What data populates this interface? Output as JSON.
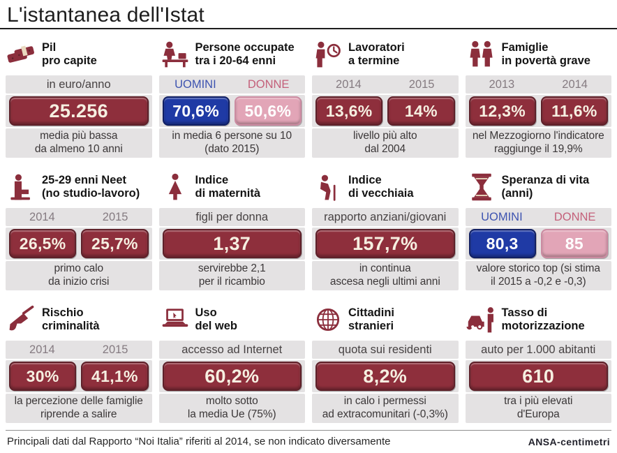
{
  "title": "L'istantanea dell'Istat",
  "footer": {
    "note": "Principali dati dal Rapporto “Noi Italia” riferiti al 2014, se non indicato diversamente",
    "logo": "ANSA-centimetri"
  },
  "colors": {
    "maroon_pill": "#8e2f3c",
    "maroon_border": "#5e2029",
    "blue_pill": "#1f3aa5",
    "blue_border": "#101f63",
    "pink_pill": "#e2a5b7",
    "pink_border": "#cb8ba1",
    "panel_bg": "#e4e2e3",
    "icon_color": "#8b2e3c",
    "year_label": "#857b81",
    "uomini_label": "#3d53b0",
    "donne_label": "#c4607a"
  },
  "panels": [
    {
      "id": "pil-pro-capite",
      "icon": "money-bundle-icon",
      "title": [
        "Pil",
        "pro capite"
      ],
      "header_label": "in euro/anno",
      "stats": [
        {
          "value": "25.256",
          "style": "maroon"
        }
      ],
      "caption": [
        "media più bassa",
        "da almeno 10 anni"
      ]
    },
    {
      "id": "persone-occupate",
      "icon": "worker-desk-icon",
      "title": [
        "Persone occupate",
        "tra i 20-64 enni"
      ],
      "stats": [
        {
          "label": "UOMINI",
          "label_style": "blue",
          "value": "70,6%",
          "style": "blue"
        },
        {
          "label": "DONNE",
          "label_style": "pink",
          "value": "50,6%",
          "style": "pink"
        }
      ],
      "caption": [
        "in media 6 persone su 10",
        "(dato 2015)"
      ]
    },
    {
      "id": "lavoratori-a-termine",
      "icon": "worker-clock-icon",
      "title": [
        "Lavoratori",
        "a termine"
      ],
      "stats": [
        {
          "label": "2014",
          "label_style": "gray",
          "value": "13,6%",
          "style": "maroon"
        },
        {
          "label": "2015",
          "label_style": "gray",
          "value": "14%",
          "style": "maroon"
        }
      ],
      "caption": [
        "livello più alto",
        "dal 2004"
      ]
    },
    {
      "id": "famiglie-poverta-grave",
      "icon": "family-icon",
      "title": [
        "Famiglie",
        "in povertà grave"
      ],
      "stats": [
        {
          "label": "2013",
          "label_style": "gray",
          "value": "12,3%",
          "style": "maroon"
        },
        {
          "label": "2014",
          "label_style": "gray",
          "value": "11,6%",
          "style": "maroon"
        }
      ],
      "caption": [
        "nel Mezzogiorno l'indicatore",
        "raggiunge il 19,9%"
      ]
    },
    {
      "id": "neet-25-29",
      "icon": "sitting-person-icon",
      "title": [
        "25-29 enni Neet",
        "(no studio-lavoro)"
      ],
      "stats": [
        {
          "label": "2014",
          "label_style": "gray",
          "value": "26,5%",
          "style": "maroon"
        },
        {
          "label": "2015",
          "label_style": "gray",
          "value": "25,7%",
          "style": "maroon"
        }
      ],
      "caption": [
        "primo calo",
        "da inizio crisi"
      ]
    },
    {
      "id": "indice-maternita",
      "icon": "mother-icon",
      "title": [
        "Indice",
        "di maternità"
      ],
      "header_label": "figli per donna",
      "stats": [
        {
          "value": "1,37",
          "style": "maroon"
        }
      ],
      "caption": [
        "servirebbe 2,1",
        "per il ricambio"
      ]
    },
    {
      "id": "indice-vecchiaia",
      "icon": "elderly-icon",
      "title": [
        "Indice",
        "di vecchiaia"
      ],
      "header_label": "rapporto anziani/giovani",
      "stats": [
        {
          "value": "157,7%",
          "style": "maroon"
        }
      ],
      "caption": [
        "in continua",
        "ascesa negli ultimi anni"
      ]
    },
    {
      "id": "speranza-di-vita",
      "icon": "hourglass-icon",
      "title": [
        "Speranza di vita",
        "(anni)"
      ],
      "stats": [
        {
          "label": "UOMINI",
          "label_style": "blue",
          "value": "80,3",
          "style": "blue"
        },
        {
          "label": "DONNE",
          "label_style": "pink",
          "value": "85",
          "style": "pink"
        }
      ],
      "caption": [
        "valore storico top (si stima",
        "il 2015 a -0,2 e -0,3)"
      ]
    },
    {
      "id": "rischio-criminalita",
      "icon": "gun-icon",
      "title": [
        "Rischio",
        "criminalità"
      ],
      "stats": [
        {
          "label": "2014",
          "label_style": "gray",
          "value": "30%",
          "style": "maroon"
        },
        {
          "label": "2015",
          "label_style": "gray",
          "value": "41,1%",
          "style": "maroon"
        }
      ],
      "caption": [
        "la percezione delle famiglie",
        "riprende a salire"
      ]
    },
    {
      "id": "uso-del-web",
      "icon": "laptop-icon",
      "title": [
        "Uso",
        "del web"
      ],
      "header_label": "accesso ad Internet",
      "stats": [
        {
          "value": "60,2%",
          "style": "maroon"
        }
      ],
      "caption": [
        "molto sotto",
        "la media Ue (75%)"
      ]
    },
    {
      "id": "cittadini-stranieri",
      "icon": "globe-icon",
      "title": [
        "Cittadini",
        "stranieri"
      ],
      "header_label": "quota sui residenti",
      "stats": [
        {
          "value": "8,2%",
          "style": "maroon"
        }
      ],
      "caption": [
        "in calo i permessi",
        "ad extracomunitari (-0,3%)"
      ]
    },
    {
      "id": "tasso-motorizzazione",
      "icon": "car-person-icon",
      "title": [
        "Tasso di",
        "motorizzazione"
      ],
      "header_label": "auto per 1.000 abitanti",
      "stats": [
        {
          "value": "610",
          "style": "maroon"
        }
      ],
      "caption": [
        "tra i più elevati",
        "d'Europa"
      ]
    }
  ],
  "chart_data": {
    "type": "table",
    "title": "L'istantanea dell'Istat",
    "columns": [
      "indicatore",
      "etichette",
      "valori",
      "nota"
    ],
    "rows": [
      [
        "Pil pro capite",
        "in euro/anno",
        "25.256",
        "media più bassa da almeno 10 anni"
      ],
      [
        "Persone occupate tra i 20-64 enni",
        "UOMINI / DONNE",
        "70,6% / 50,6%",
        "in media 6 persone su 10 (dato 2015)"
      ],
      [
        "Lavoratori a termine",
        "2014 / 2015",
        "13,6% / 14%",
        "livello più alto dal 2004"
      ],
      [
        "Famiglie in povertà grave",
        "2013 / 2014",
        "12,3% / 11,6%",
        "nel Mezzogiorno l'indicatore raggiunge il 19,9%"
      ],
      [
        "25-29 enni Neet (no studio-lavoro)",
        "2014 / 2015",
        "26,5% / 25,7%",
        "primo calo da inizio crisi"
      ],
      [
        "Indice di maternità",
        "figli per donna",
        "1,37",
        "servirebbe 2,1 per il ricambio"
      ],
      [
        "Indice di vecchiaia",
        "rapporto anziani/giovani",
        "157,7%",
        "in continua ascesa negli ultimi anni"
      ],
      [
        "Speranza di vita (anni)",
        "UOMINI / DONNE",
        "80,3 / 85",
        "valore storico top (si stima il 2015 a -0,2 e -0,3)"
      ],
      [
        "Rischio criminalità",
        "2014 / 2015",
        "30% / 41,1%",
        "la percezione delle famiglie riprende a salire"
      ],
      [
        "Uso del web",
        "accesso ad Internet",
        "60,2%",
        "molto sotto la media Ue (75%)"
      ],
      [
        "Cittadini stranieri",
        "quota sui residenti",
        "8,2%",
        "in calo i permessi ad extracomunitari (-0,3%)"
      ],
      [
        "Tasso di motorizzazione",
        "auto per 1.000 abitanti",
        "610",
        "tra i più elevati d'Europa"
      ]
    ]
  }
}
